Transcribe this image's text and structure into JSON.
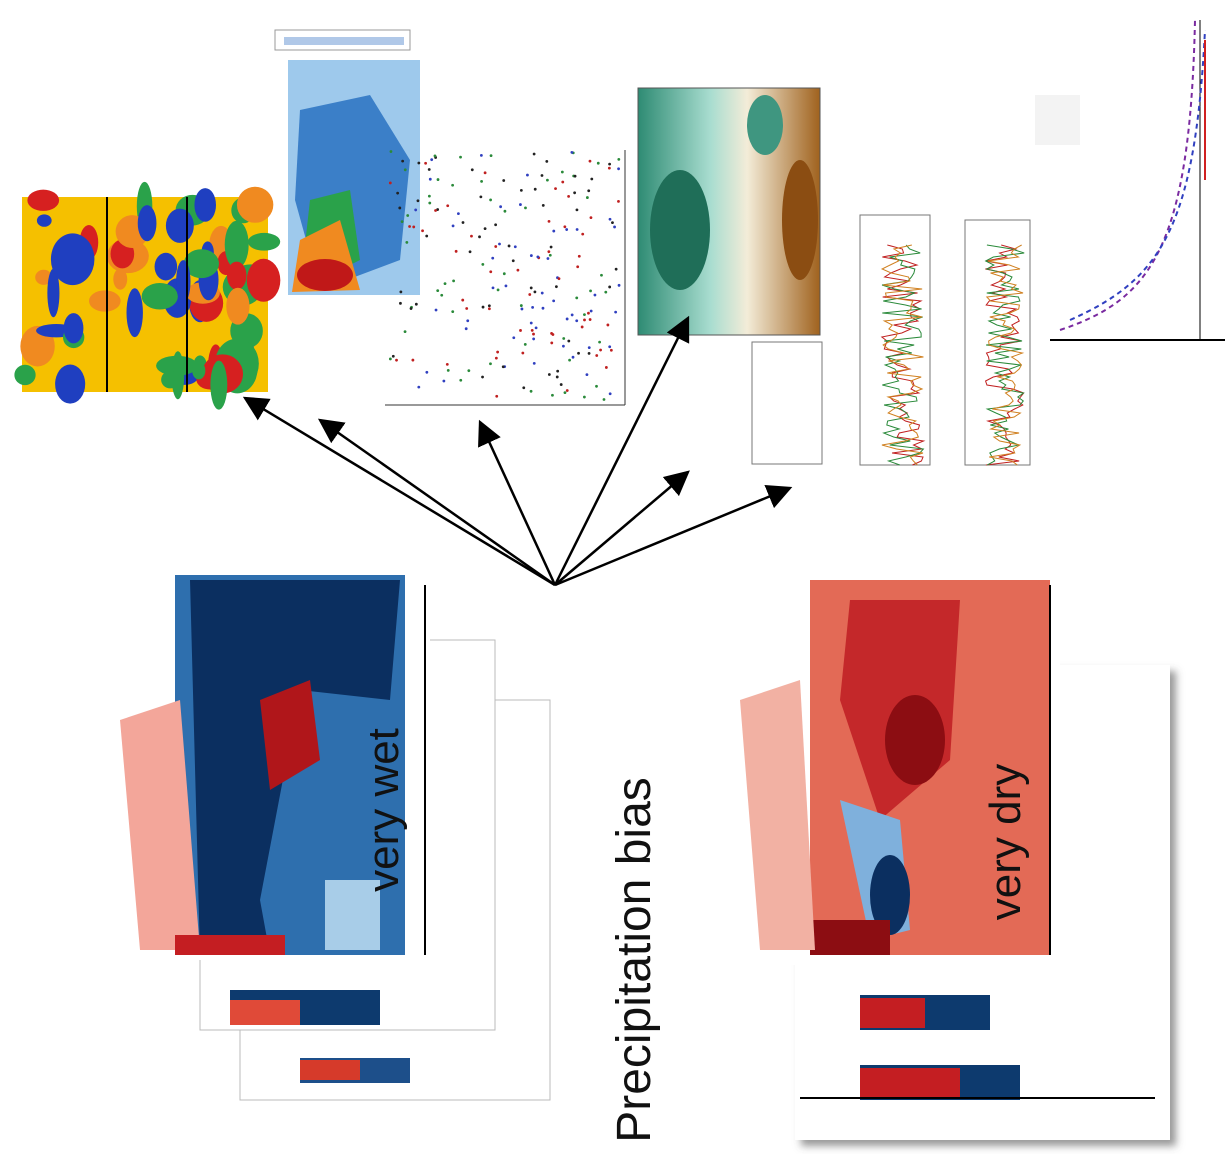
{
  "labels": {
    "left": "very wet",
    "center": "Precipitation bias",
    "right": "very dry"
  }
}
